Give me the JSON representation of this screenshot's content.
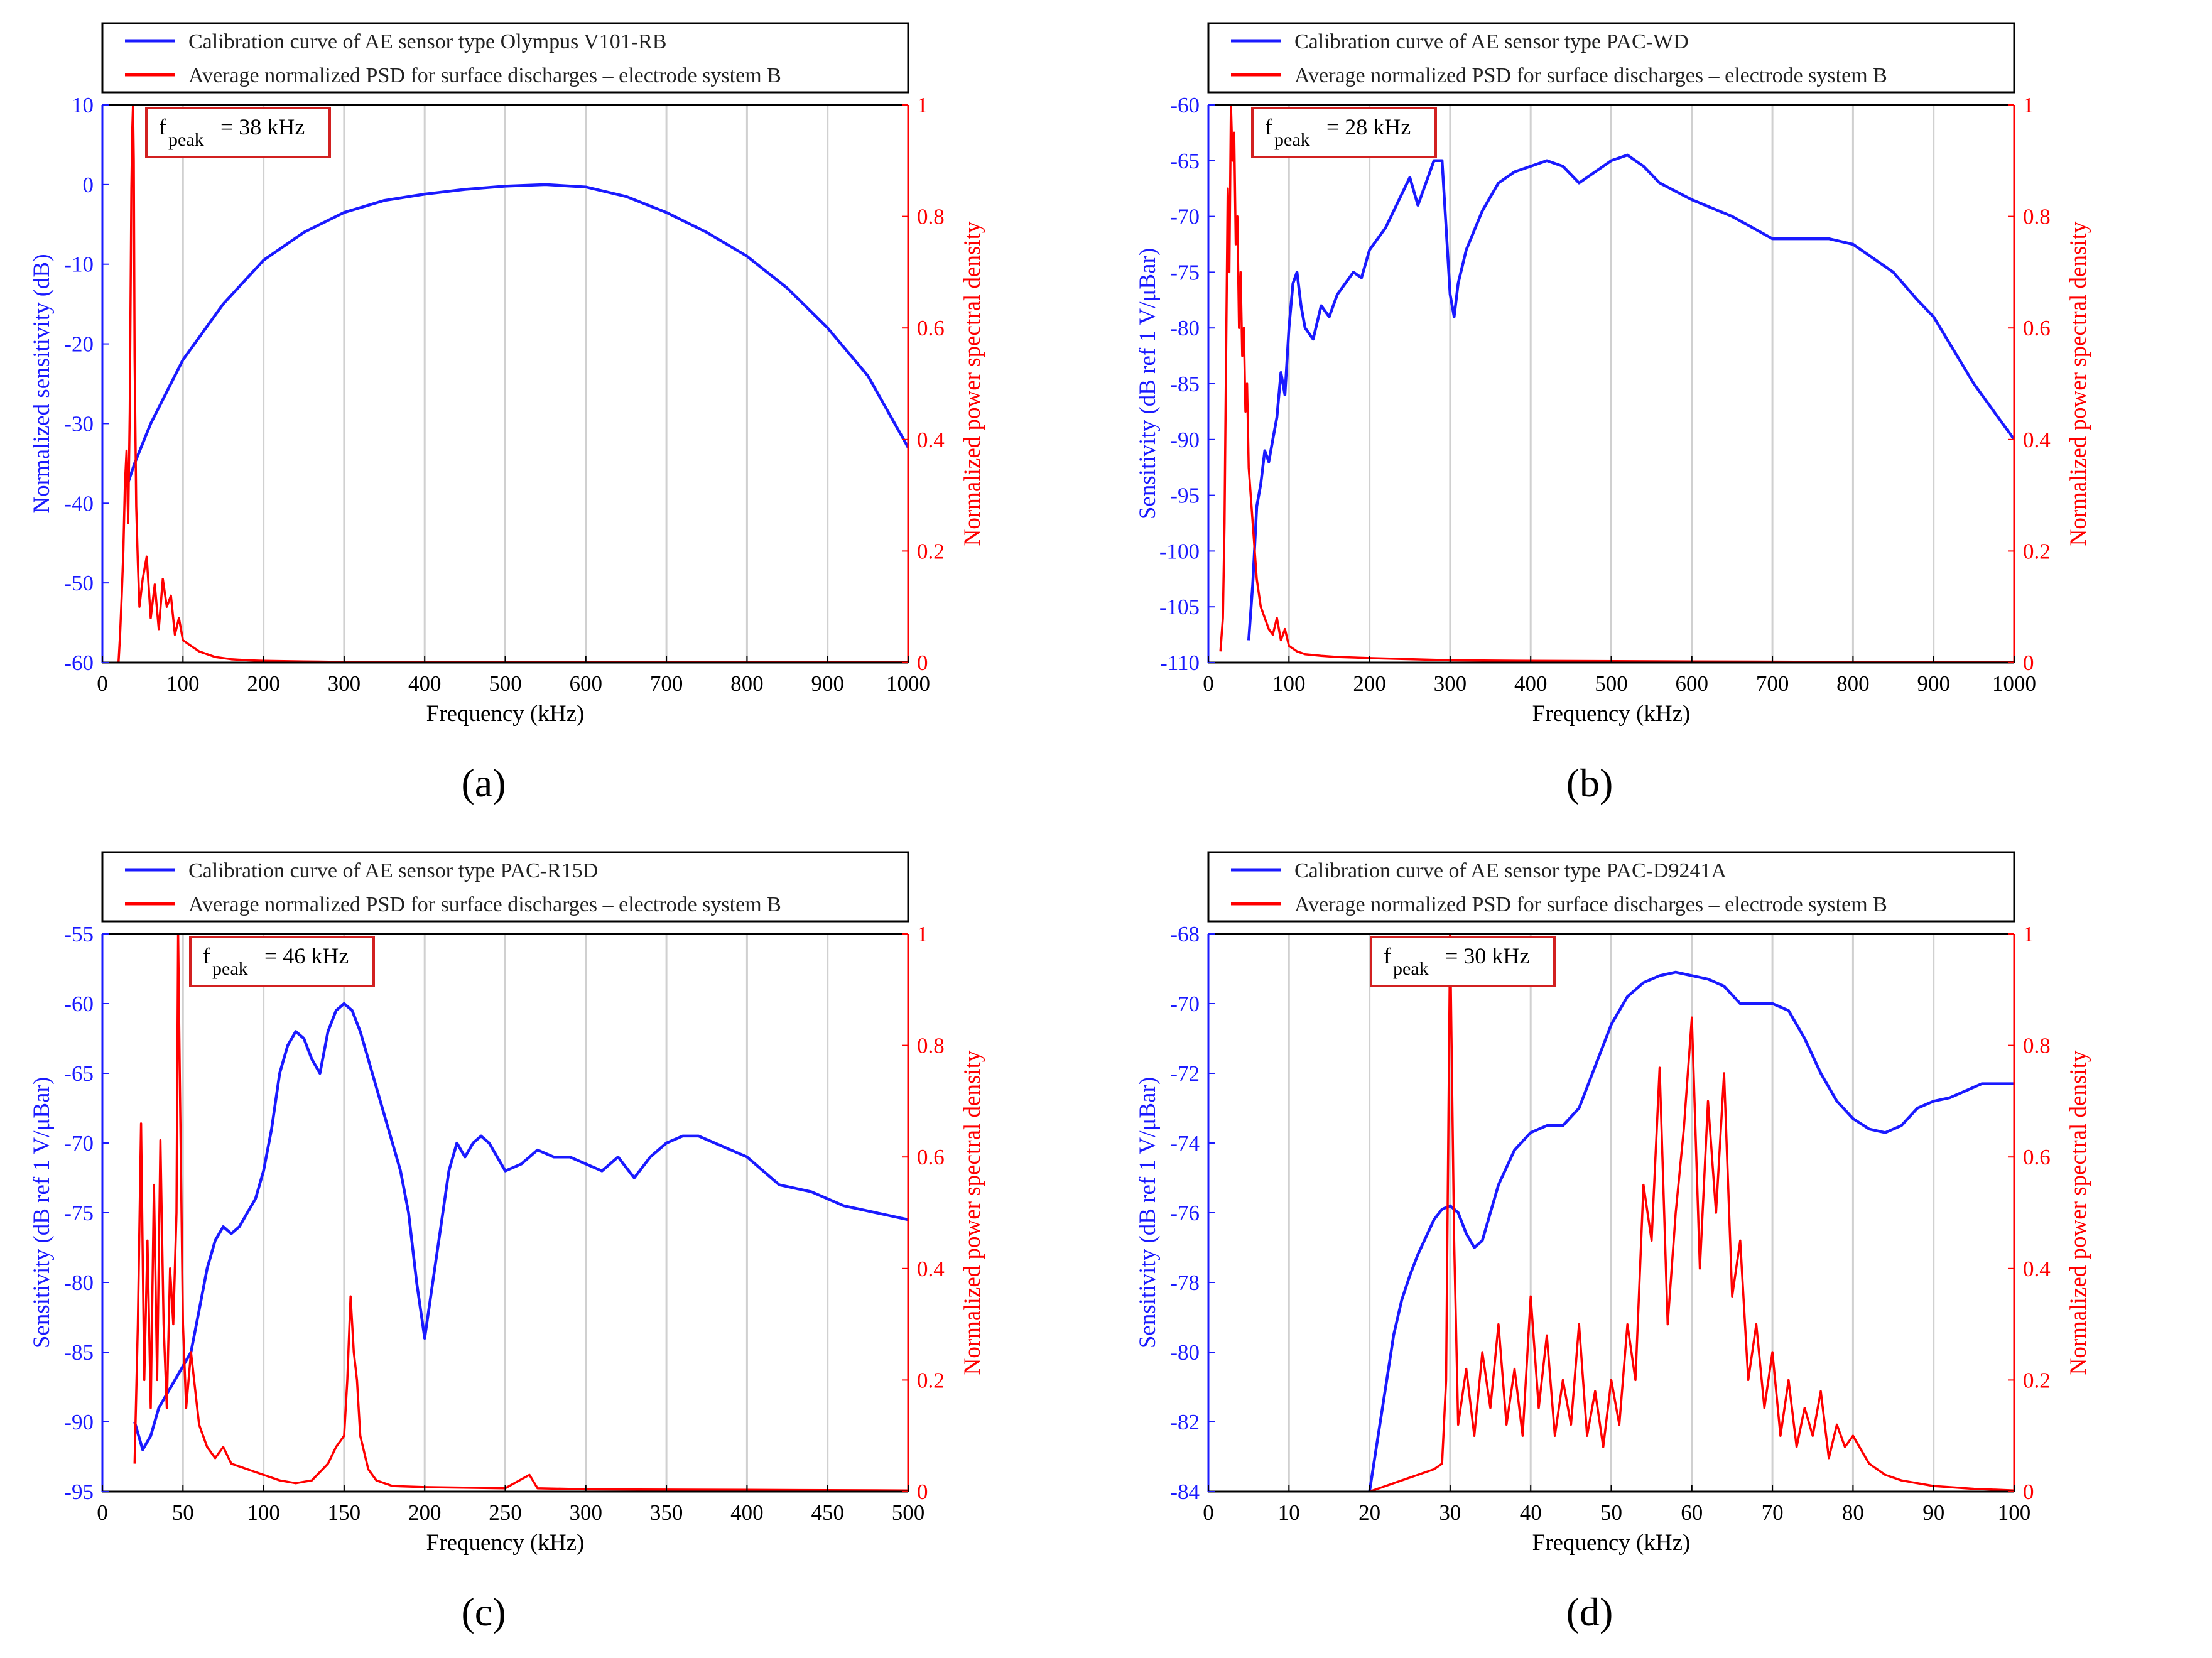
{
  "figure": {
    "colors": {
      "blue": "#1a1aff",
      "red": "#ff0000",
      "grid": "#d0d0d0",
      "box": "#d22020"
    }
  },
  "chart_data": [
    {
      "type": "line",
      "panel_label": "(a)",
      "xlabel": "Frequency (kHz)",
      "ylabel_left": "Normalized sensitivity (dB)",
      "ylabel_right": "Normalized power spectral density",
      "xlim": [
        0,
        1000
      ],
      "ylim_left": [
        -60,
        10
      ],
      "ylim_right": [
        0,
        1
      ],
      "xticks": [
        0,
        100,
        200,
        300,
        400,
        500,
        600,
        700,
        800,
        900,
        1000
      ],
      "yticks_left": [
        10,
        0,
        -10,
        -20,
        -30,
        -40,
        -50,
        -60
      ],
      "yticks_right": [
        1,
        0.8,
        0.6,
        0.4,
        0.2,
        0
      ],
      "fpeak_label": "f",
      "fpeak_sub": "peak",
      "fpeak_value": "= 38 kHz",
      "legend": [
        "Calibration curve of AE sensor type Olympus V101-RB",
        "Average normalized PSD for surface discharges – electrode system B"
      ],
      "series": [
        {
          "name": "Calibration curve",
          "axis": "left",
          "x": [
            30,
            40,
            60,
            80,
            100,
            150,
            200,
            250,
            300,
            350,
            400,
            450,
            500,
            550,
            600,
            650,
            700,
            750,
            800,
            850,
            900,
            950,
            1000
          ],
          "y": [
            -38,
            -35,
            -30,
            -26,
            -22,
            -15,
            -9.5,
            -6,
            -3.5,
            -2,
            -1.2,
            -0.6,
            -0.2,
            0,
            -0.3,
            -1.5,
            -3.5,
            -6,
            -9,
            -13,
            -18,
            -24,
            -33
          ]
        },
        {
          "name": "Average normalized PSD",
          "axis": "right",
          "x": [
            20,
            22,
            24,
            26,
            28,
            30,
            32,
            34,
            36,
            37,
            38,
            39,
            40,
            42,
            44,
            46,
            50,
            55,
            60,
            65,
            70,
            75,
            80,
            85,
            90,
            95,
            100,
            110,
            120,
            130,
            140,
            160,
            180,
            200,
            250,
            300,
            400,
            600,
            800,
            1000
          ],
          "y": [
            0,
            0.05,
            0.12,
            0.2,
            0.32,
            0.38,
            0.25,
            0.45,
            0.85,
            0.95,
            1.0,
            0.9,
            0.55,
            0.28,
            0.18,
            0.1,
            0.15,
            0.19,
            0.08,
            0.14,
            0.06,
            0.15,
            0.1,
            0.12,
            0.05,
            0.08,
            0.04,
            0.03,
            0.02,
            0.015,
            0.01,
            0.006,
            0.004,
            0.003,
            0.002,
            0.001,
            0.001,
            0.001,
            0.001,
            0.001
          ]
        }
      ]
    },
    {
      "type": "line",
      "panel_label": "(b)",
      "xlabel": "Frequency (kHz)",
      "ylabel_left": "Sensitivity (dB ref 1 V/μBar)",
      "ylabel_right": "Normalized power spectral density",
      "xlim": [
        0,
        1000
      ],
      "ylim_left": [
        -110,
        -60
      ],
      "ylim_right": [
        0,
        1
      ],
      "xticks": [
        0,
        100,
        200,
        300,
        400,
        500,
        600,
        700,
        800,
        900,
        1000
      ],
      "yticks_left": [
        -60,
        -65,
        -70,
        -75,
        -80,
        -85,
        -90,
        -95,
        -100,
        -105,
        -110
      ],
      "yticks_right": [
        1,
        0.8,
        0.6,
        0.4,
        0.2,
        0
      ],
      "fpeak_label": "f",
      "fpeak_sub": "peak",
      "fpeak_value": "= 28 kHz",
      "legend": [
        "Calibration curve of AE sensor type PAC-WD",
        "Average normalized PSD for surface discharges – electrode system B"
      ],
      "series": [
        {
          "name": "Calibration curve",
          "axis": "left",
          "x": [
            50,
            55,
            60,
            65,
            70,
            75,
            80,
            85,
            90,
            95,
            100,
            105,
            110,
            115,
            120,
            130,
            140,
            150,
            160,
            170,
            180,
            190,
            200,
            220,
            240,
            250,
            260,
            270,
            280,
            290,
            300,
            305,
            310,
            320,
            340,
            360,
            380,
            400,
            420,
            440,
            460,
            480,
            500,
            520,
            540,
            560,
            600,
            650,
            700,
            750,
            770,
            800,
            850,
            880,
            900,
            950,
            1000
          ],
          "y": [
            -108,
            -103,
            -96,
            -94,
            -91,
            -92,
            -90,
            -88,
            -84,
            -86,
            -80,
            -76,
            -75,
            -78,
            -80,
            -81,
            -78,
            -79,
            -77,
            -76,
            -75,
            -75.5,
            -73,
            -71,
            -68,
            -66.5,
            -69,
            -67,
            -65,
            -65,
            -77,
            -79,
            -76,
            -73,
            -69.5,
            -67,
            -66,
            -65.5,
            -65,
            -65.5,
            -67,
            -66,
            -65,
            -64.5,
            -65.5,
            -67,
            -68.5,
            -70,
            -72,
            -72,
            -72,
            -72.5,
            -75,
            -77.5,
            -79,
            -85,
            -90
          ]
        },
        {
          "name": "Average normalized PSD",
          "axis": "right",
          "x": [
            15,
            18,
            20,
            22,
            24,
            26,
            28,
            30,
            32,
            34,
            36,
            38,
            40,
            42,
            44,
            46,
            48,
            50,
            55,
            60,
            65,
            70,
            75,
            80,
            85,
            90,
            95,
            100,
            110,
            120,
            140,
            160,
            200,
            300,
            400,
            600,
            800,
            1000
          ],
          "y": [
            0.02,
            0.08,
            0.25,
            0.55,
            0.85,
            0.7,
            1.0,
            0.9,
            0.95,
            0.75,
            0.8,
            0.6,
            0.7,
            0.55,
            0.6,
            0.45,
            0.5,
            0.35,
            0.25,
            0.15,
            0.1,
            0.08,
            0.06,
            0.05,
            0.08,
            0.04,
            0.06,
            0.03,
            0.02,
            0.015,
            0.012,
            0.01,
            0.008,
            0.004,
            0.003,
            0.002,
            0.001,
            0.001
          ]
        }
      ]
    },
    {
      "type": "line",
      "panel_label": "(c)",
      "xlabel": "Frequency (kHz)",
      "ylabel_left": "Sensitivity (dB ref 1 V/μBar)",
      "ylabel_right": "Normalized power spectral density",
      "xlim": [
        0,
        500
      ],
      "ylim_left": [
        -95,
        -55
      ],
      "ylim_right": [
        0,
        1
      ],
      "xticks": [
        0,
        50,
        100,
        150,
        200,
        250,
        300,
        350,
        400,
        450,
        500
      ],
      "yticks_left": [
        -55,
        -60,
        -65,
        -70,
        -75,
        -80,
        -85,
        -90,
        -95
      ],
      "yticks_right": [
        1,
        0.8,
        0.6,
        0.4,
        0.2,
        0
      ],
      "fpeak_label": "f",
      "fpeak_sub": "peak",
      "fpeak_value": "= 46 kHz",
      "legend": [
        "Calibration curve of AE sensor type PAC-R15D",
        "Average normalized PSD for surface discharges – electrode system B"
      ],
      "series": [
        {
          "name": "Calibration curve",
          "axis": "left",
          "x": [
            20,
            25,
            30,
            35,
            40,
            45,
            50,
            55,
            60,
            65,
            70,
            75,
            80,
            85,
            90,
            95,
            100,
            105,
            110,
            115,
            120,
            125,
            130,
            135,
            140,
            145,
            150,
            155,
            160,
            165,
            170,
            175,
            180,
            185,
            190,
            195,
            200,
            205,
            210,
            215,
            220,
            225,
            230,
            235,
            240,
            250,
            260,
            270,
            280,
            290,
            300,
            310,
            320,
            330,
            340,
            350,
            360,
            370,
            380,
            390,
            400,
            420,
            440,
            460,
            480,
            500
          ],
          "y": [
            -90,
            -92,
            -91,
            -89,
            -88,
            -87,
            -86,
            -85,
            -82,
            -79,
            -77,
            -76,
            -76.5,
            -76,
            -75,
            -74,
            -72,
            -69,
            -65,
            -63,
            -62,
            -62.5,
            -64,
            -65,
            -62,
            -60.5,
            -60,
            -60.5,
            -62,
            -64,
            -66,
            -68,
            -70,
            -72,
            -75,
            -80,
            -84,
            -80,
            -76,
            -72,
            -70,
            -71,
            -70,
            -69.5,
            -70,
            -72,
            -71.5,
            -70.5,
            -71,
            -71,
            -71.5,
            -72,
            -71,
            -72.5,
            -71,
            -70,
            -69.5,
            -69.5,
            -70,
            -70.5,
            -71,
            -73,
            -73.5,
            -74.5,
            -75,
            -75.5
          ]
        },
        {
          "name": "Average normalized PSD",
          "axis": "right",
          "x": [
            20,
            22,
            24,
            26,
            28,
            30,
            32,
            34,
            36,
            38,
            40,
            42,
            44,
            46,
            47,
            48,
            50,
            52,
            55,
            60,
            65,
            70,
            75,
            80,
            90,
            100,
            110,
            120,
            130,
            140,
            145,
            150,
            152,
            154,
            156,
            158,
            160,
            165,
            170,
            180,
            200,
            250,
            265,
            270,
            300,
            400,
            500
          ],
          "y": [
            0.05,
            0.3,
            0.66,
            0.2,
            0.45,
            0.15,
            0.55,
            0.2,
            0.63,
            0.3,
            0.15,
            0.4,
            0.3,
            0.5,
            1.0,
            0.75,
            0.3,
            0.15,
            0.25,
            0.12,
            0.08,
            0.06,
            0.08,
            0.05,
            0.04,
            0.03,
            0.02,
            0.015,
            0.02,
            0.05,
            0.08,
            0.1,
            0.2,
            0.35,
            0.25,
            0.2,
            0.1,
            0.04,
            0.02,
            0.01,
            0.008,
            0.006,
            0.03,
            0.006,
            0.004,
            0.003,
            0.002
          ]
        }
      ]
    },
    {
      "type": "line",
      "panel_label": "(d)",
      "xlabel": "Frequency (kHz)",
      "ylabel_left": "Sensitivity (dB ref 1 V/μBar)",
      "ylabel_right": "Normalized power spectral density",
      "xlim": [
        0,
        100
      ],
      "ylim_left": [
        -84,
        -68
      ],
      "ylim_right": [
        0,
        1
      ],
      "xticks": [
        0,
        10,
        20,
        30,
        40,
        50,
        60,
        70,
        80,
        90,
        100
      ],
      "yticks_left": [
        -68,
        -70,
        -72,
        -74,
        -76,
        -78,
        -80,
        -82,
        -84
      ],
      "yticks_right": [
        1,
        0.8,
        0.6,
        0.4,
        0.2,
        0
      ],
      "fpeak_label": "f",
      "fpeak_sub": "peak",
      "fpeak_value": "= 30 kHz",
      "legend": [
        "Calibration curve of AE sensor type PAC-D9241A",
        "Average normalized PSD for surface discharges – electrode system B"
      ],
      "series": [
        {
          "name": "Calibration curve",
          "axis": "left",
          "x": [
            20,
            21,
            22,
            23,
            24,
            25,
            26,
            27,
            28,
            29,
            30,
            31,
            32,
            33,
            34,
            35,
            36,
            38,
            40,
            42,
            44,
            46,
            48,
            50,
            52,
            54,
            56,
            58,
            60,
            62,
            64,
            66,
            68,
            70,
            72,
            74,
            76,
            78,
            80,
            82,
            84,
            86,
            88,
            90,
            92,
            94,
            96,
            98,
            100
          ],
          "y": [
            -84,
            -82.5,
            -81,
            -79.5,
            -78.5,
            -77.8,
            -77.2,
            -76.7,
            -76.2,
            -75.9,
            -75.8,
            -76,
            -76.6,
            -77,
            -76.8,
            -76,
            -75.2,
            -74.2,
            -73.7,
            -73.5,
            -73.5,
            -73,
            -71.8,
            -70.6,
            -69.8,
            -69.4,
            -69.2,
            -69.1,
            -69.2,
            -69.3,
            -69.5,
            -70,
            -70,
            -70,
            -70.2,
            -71,
            -72,
            -72.8,
            -73.3,
            -73.6,
            -73.7,
            -73.5,
            -73,
            -72.8,
            -72.7,
            -72.5,
            -72.3,
            -72.3,
            -72.3
          ]
        },
        {
          "name": "Average normalized PSD",
          "axis": "right",
          "x": [
            20,
            22,
            24,
            26,
            28,
            29,
            29.5,
            30,
            30.5,
            31,
            32,
            33,
            34,
            35,
            36,
            37,
            38,
            39,
            40,
            41,
            42,
            43,
            44,
            45,
            46,
            47,
            48,
            49,
            50,
            51,
            52,
            53,
            54,
            55,
            56,
            57,
            58,
            59,
            60,
            61,
            62,
            63,
            64,
            65,
            66,
            67,
            68,
            69,
            70,
            71,
            72,
            73,
            74,
            75,
            76,
            77,
            78,
            79,
            80,
            82,
            84,
            86,
            88,
            90,
            95,
            100
          ],
          "y": [
            0,
            0.01,
            0.02,
            0.03,
            0.04,
            0.05,
            0.2,
            1.0,
            0.45,
            0.12,
            0.22,
            0.1,
            0.25,
            0.15,
            0.3,
            0.12,
            0.22,
            0.1,
            0.35,
            0.15,
            0.28,
            0.1,
            0.2,
            0.12,
            0.3,
            0.1,
            0.18,
            0.08,
            0.2,
            0.12,
            0.3,
            0.2,
            0.55,
            0.45,
            0.76,
            0.3,
            0.5,
            0.65,
            0.85,
            0.4,
            0.7,
            0.5,
            0.75,
            0.35,
            0.45,
            0.2,
            0.3,
            0.15,
            0.25,
            0.1,
            0.2,
            0.08,
            0.15,
            0.1,
            0.18,
            0.06,
            0.12,
            0.08,
            0.1,
            0.05,
            0.03,
            0.02,
            0.015,
            0.01,
            0.005,
            0.002
          ]
        }
      ]
    }
  ]
}
